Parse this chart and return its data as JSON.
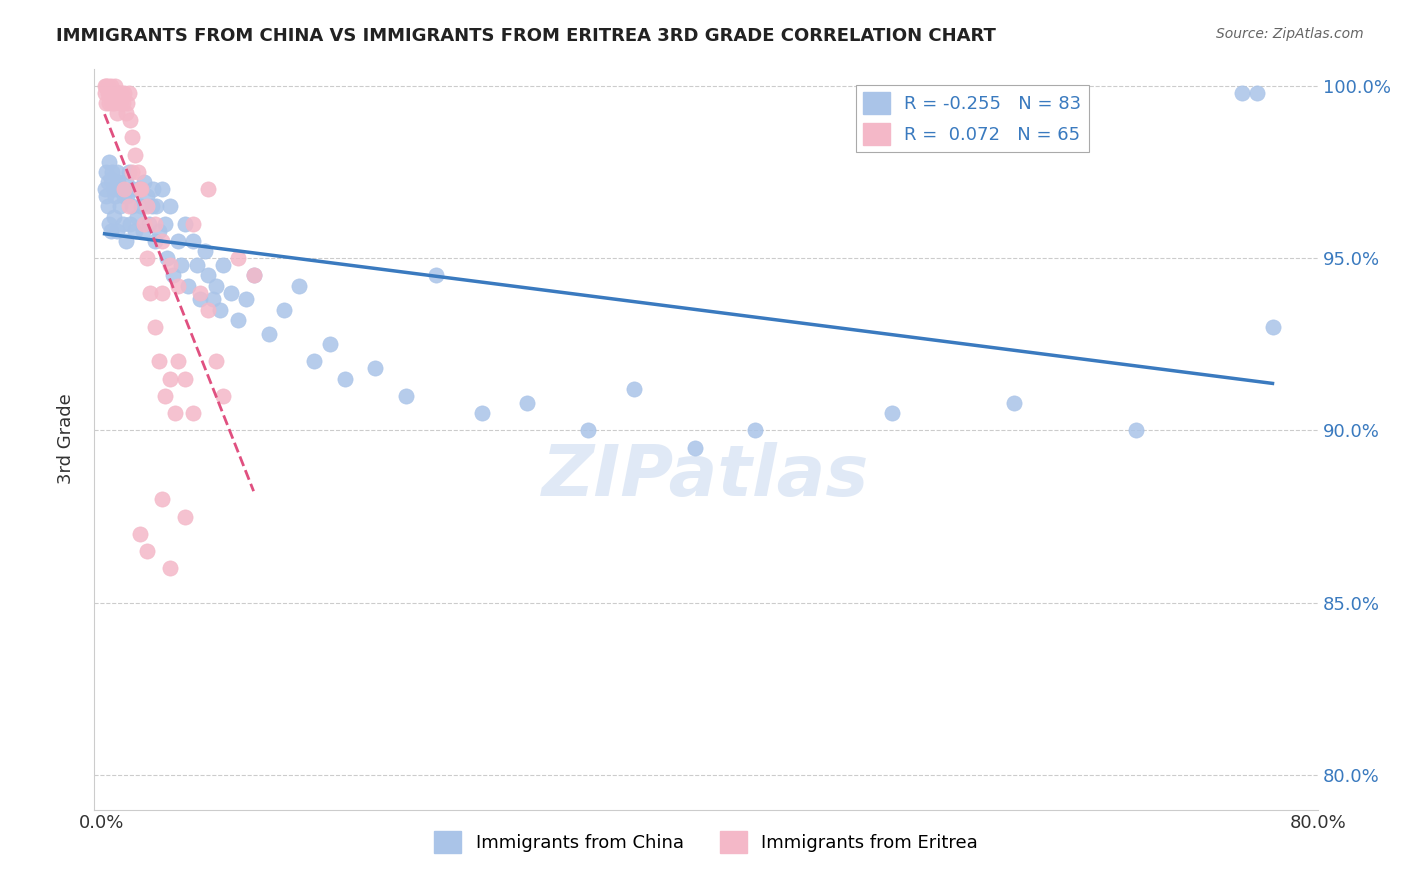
{
  "title": "IMMIGRANTS FROM CHINA VS IMMIGRANTS FROM ERITREA 3RD GRADE CORRELATION CHART",
  "source": "Source: ZipAtlas.com",
  "xlabel": "",
  "ylabel": "3rd Grade",
  "xlim": [
    0.0,
    0.8
  ],
  "ylim": [
    0.79,
    1.005
  ],
  "xticks": [
    0.0,
    0.1,
    0.2,
    0.3,
    0.4,
    0.5,
    0.6,
    0.7,
    0.8
  ],
  "xticklabels": [
    "0.0%",
    "",
    "",
    "",
    "",
    "",
    "",
    "",
    "80.0%"
  ],
  "yticks": [
    0.8,
    0.85,
    0.9,
    0.95,
    1.0
  ],
  "yticklabels": [
    "80.0%",
    "85.0%",
    "90.0%",
    "95.0%",
    "100.0%"
  ],
  "china_R": -0.255,
  "china_N": 83,
  "eritrea_R": 0.072,
  "eritrea_N": 65,
  "legend_china_color": "#aac4e8",
  "legend_eritrea_color": "#f4b8c8",
  "china_dot_color": "#aac4e8",
  "eritrea_dot_color": "#f4b8c8",
  "china_line_color": "#3a7abf",
  "eritrea_line_color": "#e05080",
  "watermark": "ZIPatlas",
  "china_x": [
    0.002,
    0.003,
    0.003,
    0.004,
    0.004,
    0.005,
    0.005,
    0.006,
    0.006,
    0.007,
    0.008,
    0.008,
    0.009,
    0.01,
    0.01,
    0.011,
    0.012,
    0.013,
    0.014,
    0.015,
    0.016,
    0.016,
    0.017,
    0.018,
    0.019,
    0.02,
    0.021,
    0.022,
    0.023,
    0.025,
    0.026,
    0.027,
    0.028,
    0.03,
    0.031,
    0.033,
    0.034,
    0.035,
    0.036,
    0.038,
    0.04,
    0.042,
    0.043,
    0.045,
    0.047,
    0.05,
    0.052,
    0.055,
    0.057,
    0.06,
    0.063,
    0.065,
    0.068,
    0.07,
    0.073,
    0.075,
    0.078,
    0.08,
    0.085,
    0.09,
    0.095,
    0.1,
    0.11,
    0.12,
    0.13,
    0.14,
    0.15,
    0.16,
    0.18,
    0.2,
    0.22,
    0.25,
    0.28,
    0.32,
    0.35,
    0.39,
    0.43,
    0.52,
    0.6,
    0.68,
    0.75,
    0.76,
    0.77
  ],
  "china_y": [
    0.97,
    0.975,
    0.968,
    0.972,
    0.965,
    0.978,
    0.96,
    0.973,
    0.958,
    0.975,
    0.97,
    0.962,
    0.968,
    0.975,
    0.958,
    0.972,
    0.965,
    0.97,
    0.96,
    0.968,
    0.972,
    0.955,
    0.968,
    0.975,
    0.96,
    0.965,
    0.97,
    0.958,
    0.962,
    0.97,
    0.965,
    0.958,
    0.972,
    0.968,
    0.96,
    0.965,
    0.97,
    0.955,
    0.965,
    0.958,
    0.97,
    0.96,
    0.95,
    0.965,
    0.945,
    0.955,
    0.948,
    0.96,
    0.942,
    0.955,
    0.948,
    0.938,
    0.952,
    0.945,
    0.938,
    0.942,
    0.935,
    0.948,
    0.94,
    0.932,
    0.938,
    0.945,
    0.928,
    0.935,
    0.942,
    0.92,
    0.925,
    0.915,
    0.918,
    0.91,
    0.945,
    0.905,
    0.908,
    0.9,
    0.912,
    0.895,
    0.9,
    0.905,
    0.908,
    0.9,
    0.998,
    0.998,
    0.93
  ],
  "eritrea_x": [
    0.002,
    0.002,
    0.003,
    0.003,
    0.004,
    0.004,
    0.005,
    0.005,
    0.006,
    0.006,
    0.007,
    0.007,
    0.008,
    0.008,
    0.009,
    0.009,
    0.01,
    0.01,
    0.011,
    0.012,
    0.013,
    0.014,
    0.015,
    0.016,
    0.017,
    0.018,
    0.019,
    0.02,
    0.022,
    0.024,
    0.026,
    0.028,
    0.03,
    0.032,
    0.035,
    0.038,
    0.04,
    0.042,
    0.045,
    0.048,
    0.05,
    0.055,
    0.06,
    0.065,
    0.07,
    0.075,
    0.08,
    0.09,
    0.1,
    0.015,
    0.018,
    0.02,
    0.025,
    0.03,
    0.035,
    0.04,
    0.045,
    0.05,
    0.06,
    0.07,
    0.025,
    0.03,
    0.04,
    0.045,
    0.055
  ],
  "eritrea_y": [
    1.0,
    0.998,
    1.0,
    0.995,
    1.0,
    0.998,
    0.998,
    0.995,
    1.0,
    0.998,
    0.998,
    0.995,
    0.998,
    0.995,
    1.0,
    0.998,
    0.998,
    0.992,
    0.998,
    0.995,
    0.998,
    0.995,
    0.998,
    0.992,
    0.995,
    0.998,
    0.99,
    0.985,
    0.98,
    0.975,
    0.97,
    0.96,
    0.95,
    0.94,
    0.93,
    0.92,
    0.94,
    0.91,
    0.915,
    0.905,
    0.92,
    0.915,
    0.905,
    0.94,
    0.935,
    0.92,
    0.91,
    0.95,
    0.945,
    0.97,
    0.965,
    0.975,
    0.97,
    0.965,
    0.96,
    0.955,
    0.948,
    0.942,
    0.96,
    0.97,
    0.87,
    0.865,
    0.88,
    0.86,
    0.875
  ]
}
